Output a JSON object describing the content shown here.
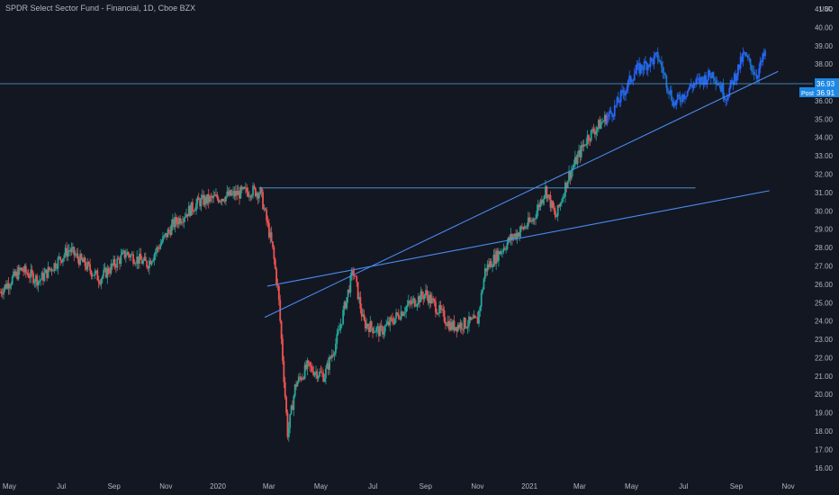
{
  "title": "SPDR Select Sector Fund - Financial, 1D, Cboe BZX",
  "currency": "USD",
  "colors": {
    "background": "#131722",
    "up": "#26a69a",
    "down": "#ef5350",
    "up_color_2021": "#2962ff",
    "trendline": "#4a8cf0",
    "horizontal_line": "#4fa3e0",
    "axis_text": "#b2b5be",
    "price_label_bg": "#1e88e5",
    "post_label_bg": "#1e88e5"
  },
  "price_labels": {
    "last": "36.93",
    "post_tag": "Post",
    "post": "36.91"
  },
  "chart_data": {
    "type": "candlestick",
    "title": "SPDR Select Sector Fund - Financial, 1D, Cboe BZX",
    "ylabel": "USD",
    "ylim": [
      15.5,
      41.0
    ],
    "yticks": [
      "16.00",
      "17.00",
      "18.00",
      "19.00",
      "20.00",
      "21.00",
      "22.00",
      "23.00",
      "24.00",
      "25.00",
      "26.00",
      "27.00",
      "28.00",
      "29.00",
      "30.00",
      "31.00",
      "32.00",
      "33.00",
      "34.00",
      "35.00",
      "36.00",
      "37.00",
      "38.00",
      "39.00",
      "40.00",
      "41.00"
    ],
    "xticks": [
      "May",
      "Jul",
      "Sep",
      "Nov",
      "2020",
      "Mar",
      "May",
      "Jul",
      "Sep",
      "Nov",
      "2021",
      "Mar",
      "May",
      "Jul",
      "Sep",
      "Nov"
    ],
    "xlim": [
      "2019-04-20",
      "2021-11-30"
    ],
    "grid": false,
    "series": [
      {
        "values_desc": "daily close (approx.)",
        "points": [
          [
            "2019-04-20",
            25.6
          ],
          [
            "2019-05-15",
            26.8
          ],
          [
            "2019-06-05",
            26.2
          ],
          [
            "2019-07-10",
            27.9
          ],
          [
            "2019-08-15",
            26.3
          ],
          [
            "2019-09-15",
            27.7
          ],
          [
            "2019-10-10",
            27.1
          ],
          [
            "2019-11-10",
            29.3
          ],
          [
            "2019-12-10",
            30.5
          ],
          [
            "2020-01-10",
            30.8
          ],
          [
            "2020-02-10",
            31.1
          ],
          [
            "2020-02-20",
            31.0
          ],
          [
            "2020-03-05",
            28.0
          ],
          [
            "2020-03-12",
            25.5
          ],
          [
            "2020-03-23",
            17.8
          ],
          [
            "2020-04-01",
            20.5
          ],
          [
            "2020-04-15",
            21.5
          ],
          [
            "2020-05-05",
            21.0
          ],
          [
            "2020-05-20",
            23.0
          ],
          [
            "2020-06-08",
            26.8
          ],
          [
            "2020-06-20",
            23.9
          ],
          [
            "2020-07-10",
            23.4
          ],
          [
            "2020-08-10",
            24.8
          ],
          [
            "2020-09-01",
            25.5
          ],
          [
            "2020-10-01",
            23.7
          ],
          [
            "2020-11-01",
            24.0
          ],
          [
            "2020-11-10",
            26.8
          ],
          [
            "2020-12-10",
            28.5
          ],
          [
            "2021-01-05",
            29.5
          ],
          [
            "2021-01-20",
            31.2
          ],
          [
            "2021-02-01",
            29.6
          ],
          [
            "2021-02-15",
            31.8
          ],
          [
            "2021-03-10",
            34.0
          ],
          [
            "2021-04-10",
            35.5
          ],
          [
            "2021-05-05",
            37.6
          ],
          [
            "2021-06-01",
            38.4
          ],
          [
            "2021-06-20",
            35.8
          ],
          [
            "2021-07-10",
            36.8
          ],
          [
            "2021-08-05",
            37.5
          ],
          [
            "2021-08-20",
            36.2
          ],
          [
            "2021-09-10",
            38.5
          ],
          [
            "2021-09-25",
            37.4
          ],
          [
            "2021-10-05",
            38.6
          ]
        ]
      }
    ],
    "annotations": [
      {
        "type": "horizontal_line",
        "y": 36.93,
        "full_width": true
      },
      {
        "type": "horizontal_segment",
        "y": 31.25,
        "x_start": "2020-02-18",
        "x_end": "2021-07-15"
      },
      {
        "type": "trendline",
        "from": [
          "2020-02-25",
          24.2
        ],
        "to": [
          "2021-10-20",
          37.6
        ]
      },
      {
        "type": "trendline",
        "from": [
          "2020-02-28",
          25.9
        ],
        "to": [
          "2021-10-10",
          31.1
        ]
      }
    ]
  }
}
